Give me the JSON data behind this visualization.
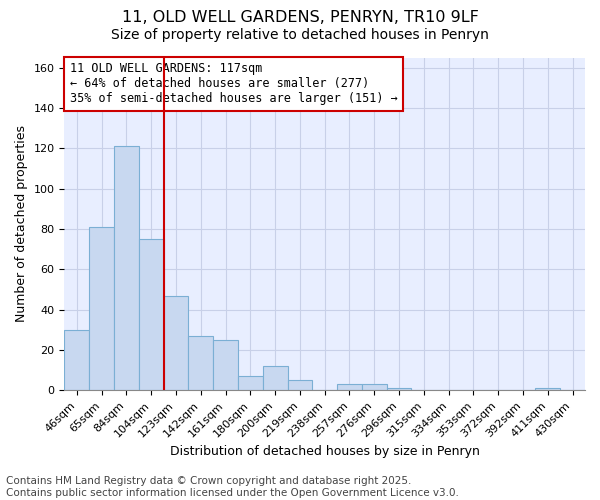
{
  "title1": "11, OLD WELL GARDENS, PENRYN, TR10 9LF",
  "title2": "Size of property relative to detached houses in Penryn",
  "xlabel": "Distribution of detached houses by size in Penryn",
  "ylabel": "Number of detached properties",
  "bar_labels": [
    "46sqm",
    "65sqm",
    "84sqm",
    "104sqm",
    "123sqm",
    "142sqm",
    "161sqm",
    "180sqm",
    "200sqm",
    "219sqm",
    "238sqm",
    "257sqm",
    "276sqm",
    "296sqm",
    "315sqm",
    "334sqm",
    "353sqm",
    "372sqm",
    "392sqm",
    "411sqm",
    "430sqm"
  ],
  "bar_values": [
    30,
    81,
    121,
    75,
    47,
    27,
    25,
    7,
    12,
    5,
    0,
    3,
    3,
    1,
    0,
    0,
    0,
    0,
    0,
    1,
    0
  ],
  "bar_color": "#c8d8f0",
  "bar_edgecolor": "#7bafd4",
  "bar_linewidth": 0.8,
  "vline_x": 3.5,
  "vline_color": "#cc0000",
  "vline_linewidth": 1.5,
  "annotation_text": "11 OLD WELL GARDENS: 117sqm\n← 64% of detached houses are smaller (277)\n35% of semi-detached houses are larger (151) →",
  "annotation_box_edgecolor": "#cc0000",
  "annotation_box_facecolor": "#ffffff",
  "annotation_fontsize": 8.5,
  "ylim": [
    0,
    165
  ],
  "yticks": [
    0,
    20,
    40,
    60,
    80,
    100,
    120,
    140,
    160
  ],
  "footer1": "Contains HM Land Registry data © Crown copyright and database right 2025.",
  "footer2": "Contains public sector information licensed under the Open Government Licence v3.0.",
  "background_color": "#ffffff",
  "plot_bg_color": "#e8eeff",
  "grid_color": "#c8d0e8",
  "title_fontsize": 11.5,
  "subtitle_fontsize": 10,
  "axis_label_fontsize": 9,
  "tick_fontsize": 8,
  "footer_fontsize": 7.5
}
